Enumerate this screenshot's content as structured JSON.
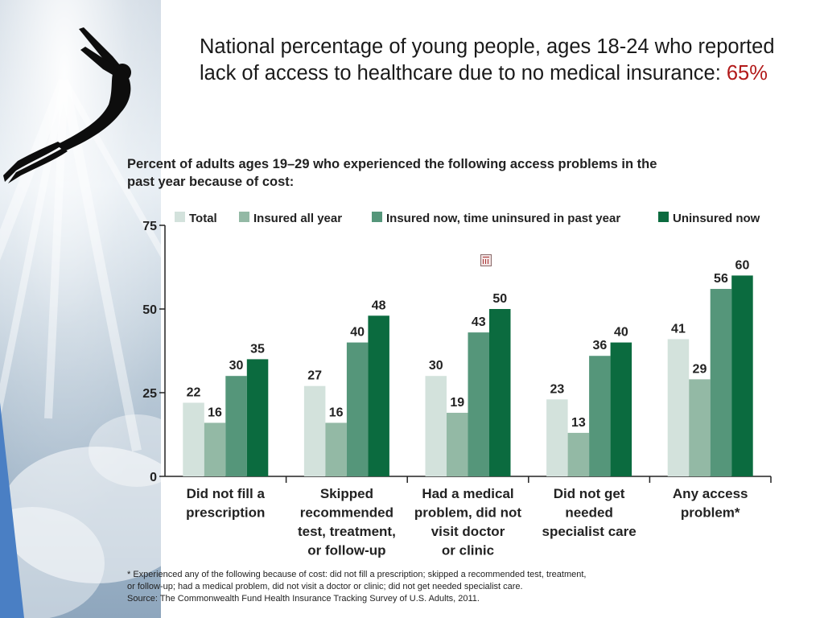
{
  "slide": {
    "title_main": "National percentage of young people, ages 18-24 who reported lack of access to healthcare due to no medical insurance: ",
    "title_highlight": "65%"
  },
  "colors": {
    "highlight": "#b21a1a",
    "series": [
      "#d3e2dc",
      "#93b9a5",
      "#55967a",
      "#0b6b3f"
    ]
  },
  "chart_data": {
    "type": "bar",
    "title": "Percent of adults ages 19–29 who experienced the following access problems in the past year because of cost:",
    "legend_position": "top",
    "ylim": [
      0,
      75
    ],
    "yticks": [
      0,
      25,
      50,
      75
    ],
    "grid": false,
    "categories": [
      [
        "Did not fill a",
        "prescription"
      ],
      [
        "Skipped",
        "recommended",
        "test, treatment,",
        "or follow-up"
      ],
      [
        "Had a medical",
        "problem, did not",
        "visit doctor",
        "or clinic"
      ],
      [
        "Did not get",
        "needed",
        "specialist care"
      ],
      [
        "Any access",
        "problem*"
      ]
    ],
    "series": [
      {
        "name": "Total",
        "values": [
          22,
          27,
          30,
          23,
          41
        ]
      },
      {
        "name": "Insured all year",
        "values": [
          16,
          16,
          19,
          13,
          29
        ]
      },
      {
        "name": "Insured now, time uninsured in past year",
        "values": [
          30,
          40,
          43,
          36,
          56
        ]
      },
      {
        "name": "Uninsured now",
        "values": [
          35,
          48,
          50,
          40,
          60
        ]
      }
    ]
  },
  "footnote": {
    "line1": "* Experienced any of the following because of cost: did not fill a prescription; skipped a recommended test, treatment,",
    "line2": "or follow-up; had a medical problem, did not visit a doctor or clinic; did not get needed specialist care.",
    "source": "Source: The Commonwealth Fund Health Insurance Tracking Survey of U.S. Adults, 2011."
  }
}
